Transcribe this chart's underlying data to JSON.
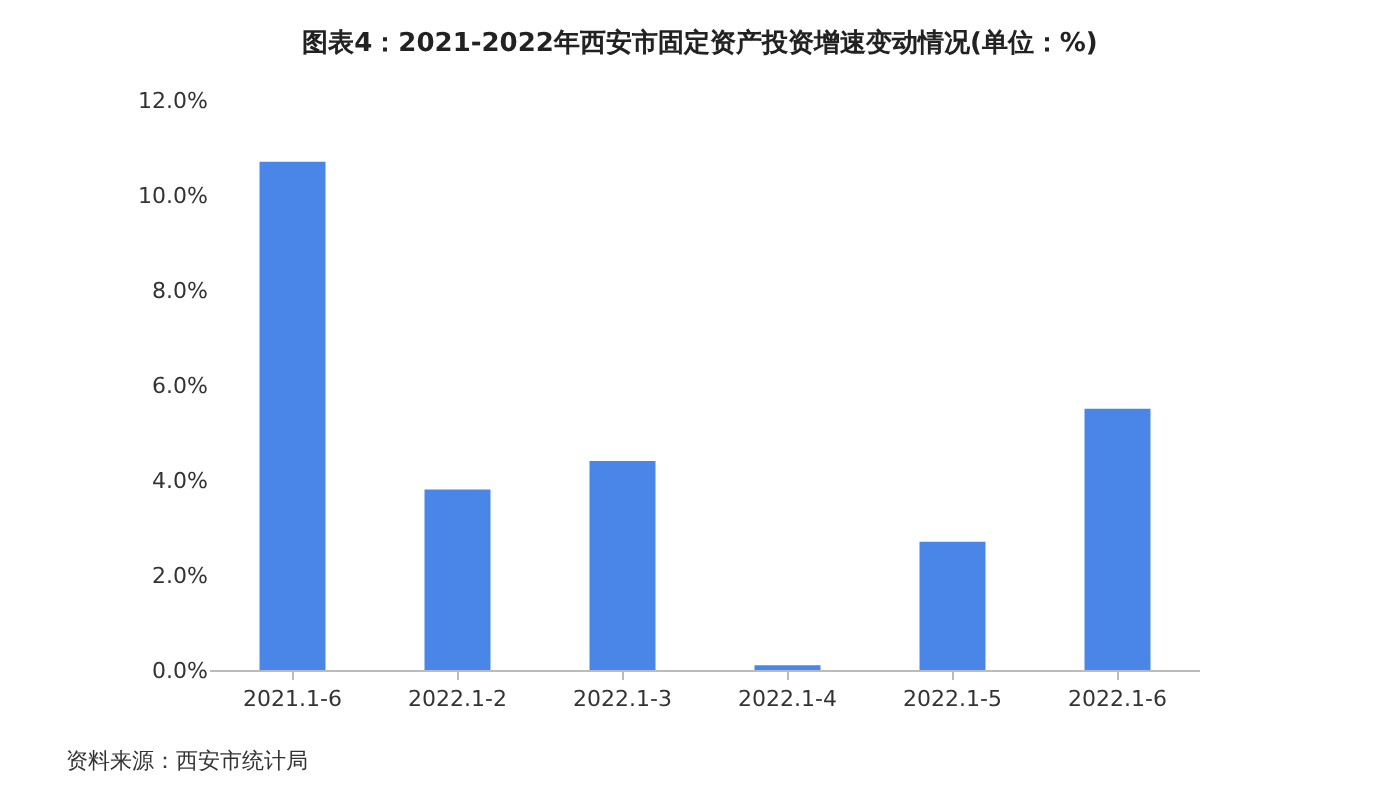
{
  "chart_data": {
    "type": "bar",
    "title": "图表4：2021-2022年西安市固定资产投资增速变动情况(单位：%)",
    "categories": [
      "2021.1-6",
      "2022.1-2",
      "2022.1-3",
      "2022.1-4",
      "2022.1-5",
      "2022.1-6"
    ],
    "values": [
      10.7,
      3.8,
      4.4,
      0.1,
      2.7,
      5.5
    ],
    "color": "#4a86e8",
    "ylim": [
      0,
      12
    ],
    "yticks": [
      {
        "value": 0,
        "label": "0.0%"
      },
      {
        "value": 2,
        "label": "2.0%"
      },
      {
        "value": 4,
        "label": "4.0%"
      },
      {
        "value": 6,
        "label": "6.0%"
      },
      {
        "value": 8,
        "label": "8.0%"
      },
      {
        "value": 10,
        "label": "10.0%"
      },
      {
        "value": 12,
        "label": "12.0%"
      }
    ],
    "grid": false,
    "annotations": [
      "资料来源：西安市统计局"
    ]
  }
}
